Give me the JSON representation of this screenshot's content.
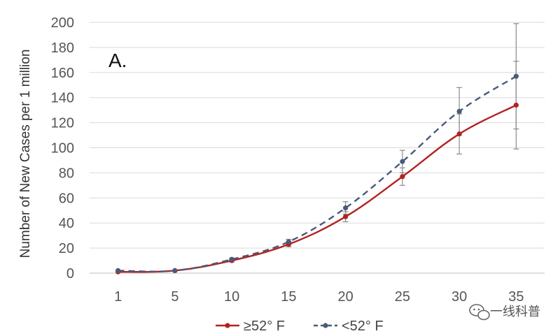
{
  "chart_data": {
    "type": "line",
    "title": "",
    "annotation": "A.",
    "xlabel": "",
    "ylabel": "Number of New Cases per 1 million",
    "categories": [
      "1",
      "5",
      "10",
      "15",
      "20",
      "25",
      "30",
      "35"
    ],
    "ylim": [
      0,
      200
    ],
    "yticks": [
      "0",
      "20",
      "40",
      "60",
      "80",
      "100",
      "120",
      "140",
      "160",
      "180",
      "200"
    ],
    "grid": true,
    "legend_position": "bottom",
    "series": [
      {
        "name": "≥52° F",
        "color": "#b22222",
        "line_style": "solid",
        "values": [
          1,
          2,
          10,
          23,
          45,
          77,
          111,
          134
        ],
        "error": [
          0,
          0,
          1,
          2,
          4,
          7,
          16,
          35
        ]
      },
      {
        "name": "<52° F",
        "color": "#4a5a78",
        "line_style": "dashed",
        "values": [
          2,
          2,
          11,
          25,
          52,
          89,
          129,
          157
        ],
        "error": [
          0,
          0,
          1,
          2,
          5,
          9,
          19,
          42
        ]
      }
    ]
  },
  "watermark": {
    "text": "一线科普",
    "icon": "wechat-icon"
  }
}
